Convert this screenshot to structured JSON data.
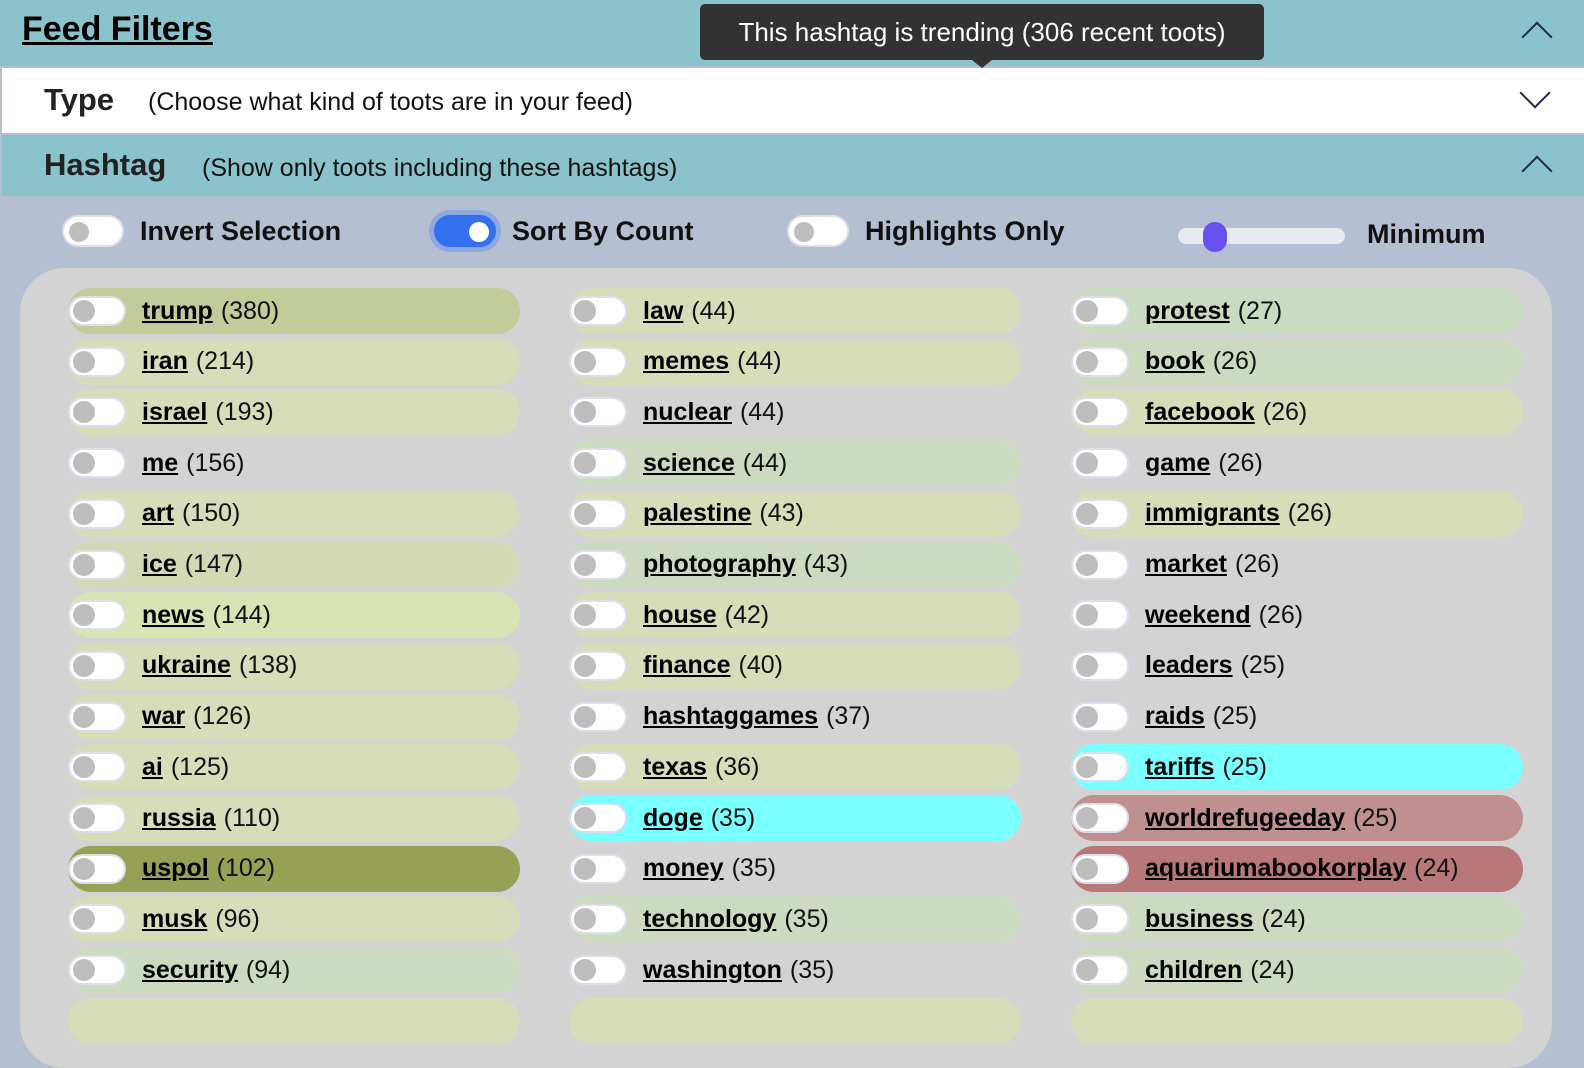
{
  "header": {
    "title": "Feed Filters"
  },
  "type_section": {
    "title": "Type",
    "description": "(Choose what kind of toots are in your feed)"
  },
  "hashtag_section": {
    "title": "Hashtag",
    "description": "(Show only toots including these hashtags)"
  },
  "controls": {
    "invert": {
      "label": "Invert Selection",
      "on": false
    },
    "sort": {
      "label": "Sort By Count",
      "on": true
    },
    "highlights": {
      "label": "Highlights Only",
      "on": false
    },
    "minimum": {
      "label": "Minimum",
      "value_fraction": 0.22
    }
  },
  "columns": [
    [
      {
        "name": "trump",
        "count": "(380)",
        "color": "#c2cb9a"
      },
      {
        "name": "iran",
        "count": "(214)",
        "color": "#d6ddb8"
      },
      {
        "name": "israel",
        "count": "(193)",
        "color": "#d6ddb8"
      },
      {
        "name": "me",
        "count": "(156)",
        "color": "#d3d3d3"
      },
      {
        "name": "art",
        "count": "(150)",
        "color": "#d6ddb8"
      },
      {
        "name": "ice",
        "count": "(147)",
        "color": "#d4d9b5"
      },
      {
        "name": "news",
        "count": "(144)",
        "color": "#d8e4b4"
      },
      {
        "name": "ukraine",
        "count": "(138)",
        "color": "#d6ddb8"
      },
      {
        "name": "war",
        "count": "(126)",
        "color": "#d6ddb8"
      },
      {
        "name": "ai",
        "count": "(125)",
        "color": "#d6ddb8"
      },
      {
        "name": "russia",
        "count": "(110)",
        "color": "#d6ddb8"
      },
      {
        "name": "uspol",
        "count": "(102)",
        "color": "#97a155"
      },
      {
        "name": "musk",
        "count": "(96)",
        "color": "#d6ddb8"
      },
      {
        "name": "security",
        "count": "(94)",
        "color": "#ccdbc0"
      }
    ],
    [
      {
        "name": "law",
        "count": "(44)",
        "color": "#d6ddb8"
      },
      {
        "name": "memes",
        "count": "(44)",
        "color": "#d6ddb8"
      },
      {
        "name": "nuclear",
        "count": "(44)",
        "color": "#d3d3d3"
      },
      {
        "name": "science",
        "count": "(44)",
        "color": "#ccdbc0"
      },
      {
        "name": "palestine",
        "count": "(43)",
        "color": "#d6ddb8"
      },
      {
        "name": "photography",
        "count": "(43)",
        "color": "#ccdbc0"
      },
      {
        "name": "house",
        "count": "(42)",
        "color": "#d6ddb8"
      },
      {
        "name": "finance",
        "count": "(40)",
        "color": "#d6ddb8"
      },
      {
        "name": "hashtaggames",
        "count": "(37)",
        "color": "#d3d3d3"
      },
      {
        "name": "texas",
        "count": "(36)",
        "color": "#d6ddb8"
      },
      {
        "name": "doge",
        "count": "(35)",
        "color": "#7affff"
      },
      {
        "name": "money",
        "count": "(35)",
        "color": "#d3d3d3"
      },
      {
        "name": "technology",
        "count": "(35)",
        "color": "#ccdbc0"
      },
      {
        "name": "washington",
        "count": "(35)",
        "color": "#d3d3d3"
      }
    ],
    [
      {
        "name": "protest",
        "count": "(27)",
        "color": "#c9dcc1"
      },
      {
        "name": "book",
        "count": "(26)",
        "color": "#ccdbc0"
      },
      {
        "name": "facebook",
        "count": "(26)",
        "color": "#d6ddb8"
      },
      {
        "name": "game",
        "count": "(26)",
        "color": "#d3d3d3"
      },
      {
        "name": "immigrants",
        "count": "(26)",
        "color": "#d6ddb8"
      },
      {
        "name": "market",
        "count": "(26)",
        "color": "#d3d3d3"
      },
      {
        "name": "weekend",
        "count": "(26)",
        "color": "#d3d3d3"
      },
      {
        "name": "leaders",
        "count": "(25)",
        "color": "#d3d3d3"
      },
      {
        "name": "raids",
        "count": "(25)",
        "color": "#d3d3d3"
      },
      {
        "name": "tariffs",
        "count": "(25)",
        "color": "#7affff"
      },
      {
        "name": "worldrefugeeday",
        "count": "(25)",
        "color": "#c09090"
      },
      {
        "name": "aquariumabookorplay",
        "count": "(24)",
        "color": "#b87878"
      },
      {
        "name": "business",
        "count": "(24)",
        "color": "#ccdbc0"
      },
      {
        "name": "children",
        "count": "(24)",
        "color": "#ccdbc0"
      }
    ]
  ],
  "tooltip": {
    "text": "This hashtag is trending (306 recent toots)"
  }
}
